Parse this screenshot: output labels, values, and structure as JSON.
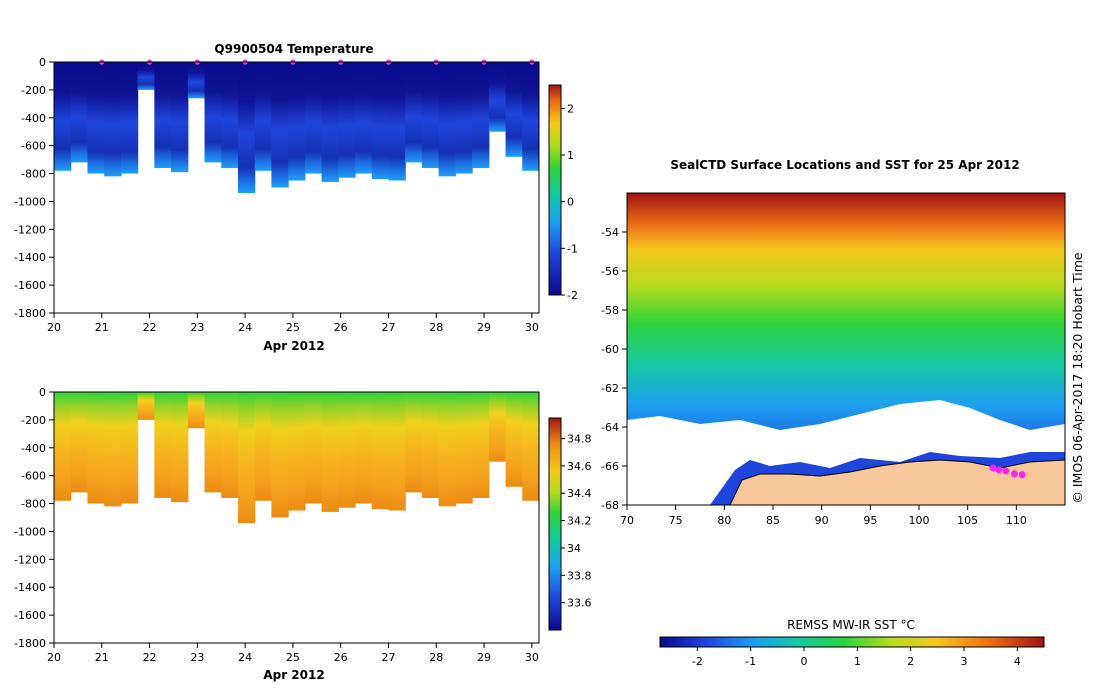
{
  "chart_data": [
    {
      "type": "heatmap",
      "title": "Q9900504  Temperature",
      "xlabel": "Apr 2012",
      "ylabel": "",
      "xlim": [
        20,
        30.15
      ],
      "ylim": [
        -1800,
        0
      ],
      "x_ticks": [
        "20",
        "21",
        "22",
        "23",
        "24",
        "25",
        "26",
        "27",
        "28",
        "29",
        "30"
      ],
      "y_ticks": [
        "0",
        "-200",
        "-400",
        "-600",
        "-800",
        "-1000",
        "-1200",
        "-1400",
        "-1600",
        "-1800"
      ],
      "colorbar": {
        "min": -2,
        "max": 2.5,
        "ticks": [
          "-2",
          "-1",
          "0",
          "1",
          "2"
        ]
      },
      "marker_color": "#dd44cc",
      "profile_depths": [
        -780,
        -720,
        -800,
        -820,
        -800,
        -200,
        -760,
        -790,
        -260,
        -720,
        -760,
        -940,
        -780,
        -900,
        -850,
        -800,
        -860,
        -830,
        -800,
        -840,
        -850,
        -720,
        -760,
        -820,
        -800,
        -760,
        -500,
        -680,
        -780
      ]
    },
    {
      "type": "heatmap",
      "title": "",
      "xlabel": "Apr 2012",
      "ylabel": "",
      "xlim": [
        20,
        30.15
      ],
      "ylim": [
        -1800,
        0
      ],
      "x_ticks": [
        "20",
        "21",
        "22",
        "23",
        "24",
        "25",
        "26",
        "27",
        "28",
        "29",
        "30"
      ],
      "y_ticks": [
        "0",
        "-200",
        "-400",
        "-600",
        "-800",
        "-1000",
        "-1200",
        "-1400",
        "-1600",
        "-1800"
      ],
      "colorbar": {
        "min": 33.4,
        "max": 34.95,
        "ticks": [
          "33.6",
          "33.8",
          "34",
          "34.2",
          "34.4",
          "34.6",
          "34.8"
        ]
      }
    },
    {
      "type": "heatmap",
      "title": "SealCTD Surface Locations and SST for 25 Apr 2012",
      "xlabel": "",
      "ylabel": "",
      "xlim": [
        70,
        115
      ],
      "ylim": [
        -68,
        -52
      ],
      "x_ticks": [
        "70",
        "75",
        "80",
        "85",
        "90",
        "95",
        "100",
        "105",
        "110"
      ],
      "y_ticks": [
        "-54",
        "-56",
        "-58",
        "-60",
        "-62",
        "-64",
        "-66",
        "-68"
      ],
      "side_label": "© IMOS 06-Apr-2017 18:20 Hobart Time",
      "colorbar": {
        "label": "REMSS MW-IR SST °C",
        "min": -2.7,
        "max": 4.5,
        "ticks": [
          "-2",
          "-1",
          "0",
          "1",
          "2",
          "3",
          "4"
        ]
      },
      "land_color": "#f8c89a",
      "track_color": "#ff22ee",
      "track_points": [
        [
          107.6,
          -66.1
        ],
        [
          108.2,
          -66.2
        ],
        [
          108.9,
          -66.25
        ],
        [
          109.8,
          -66.4
        ],
        [
          110.6,
          -66.45
        ]
      ]
    }
  ]
}
